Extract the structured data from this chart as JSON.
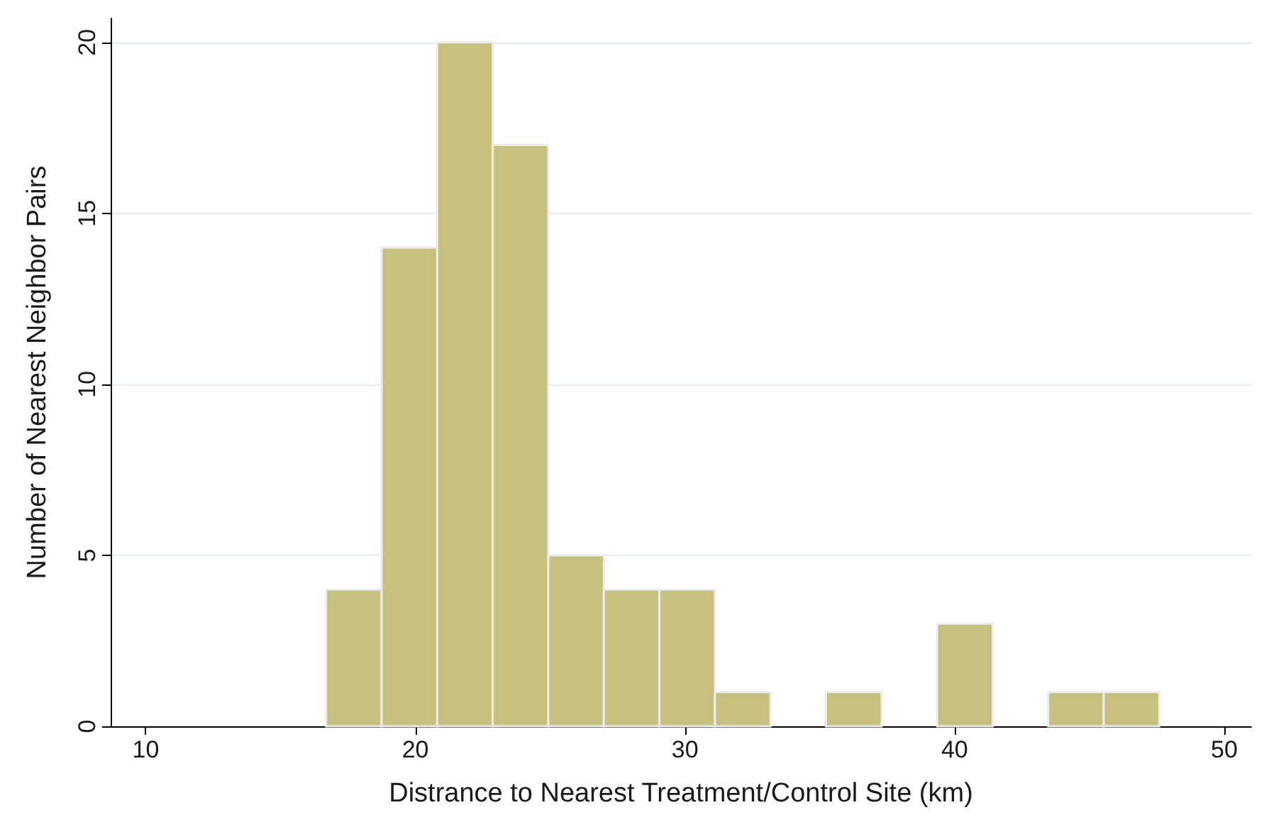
{
  "chart_data": {
    "type": "histogram",
    "xlabel": "Distrance to Nearest Treatment/Control Site (km)",
    "ylabel": "Number of Nearest Neighbor Pairs",
    "bins": [
      16.69,
      18.75,
      20.81,
      22.87,
      24.93,
      26.99,
      29.05,
      31.11,
      33.17,
      35.23,
      37.29,
      39.35,
      41.41,
      43.47,
      45.53,
      47.59
    ],
    "values": [
      4,
      14,
      20,
      17,
      5,
      4,
      4,
      1,
      0,
      1,
      0,
      3,
      0,
      1,
      1
    ],
    "color": "#c8c07e",
    "xlim": [
      8.7,
      51
    ],
    "xticks": [
      10,
      20,
      30,
      40,
      50
    ],
    "ylim": [
      0,
      20.7
    ],
    "yticks": [
      0,
      5,
      10,
      15,
      20
    ],
    "grid": "y"
  }
}
